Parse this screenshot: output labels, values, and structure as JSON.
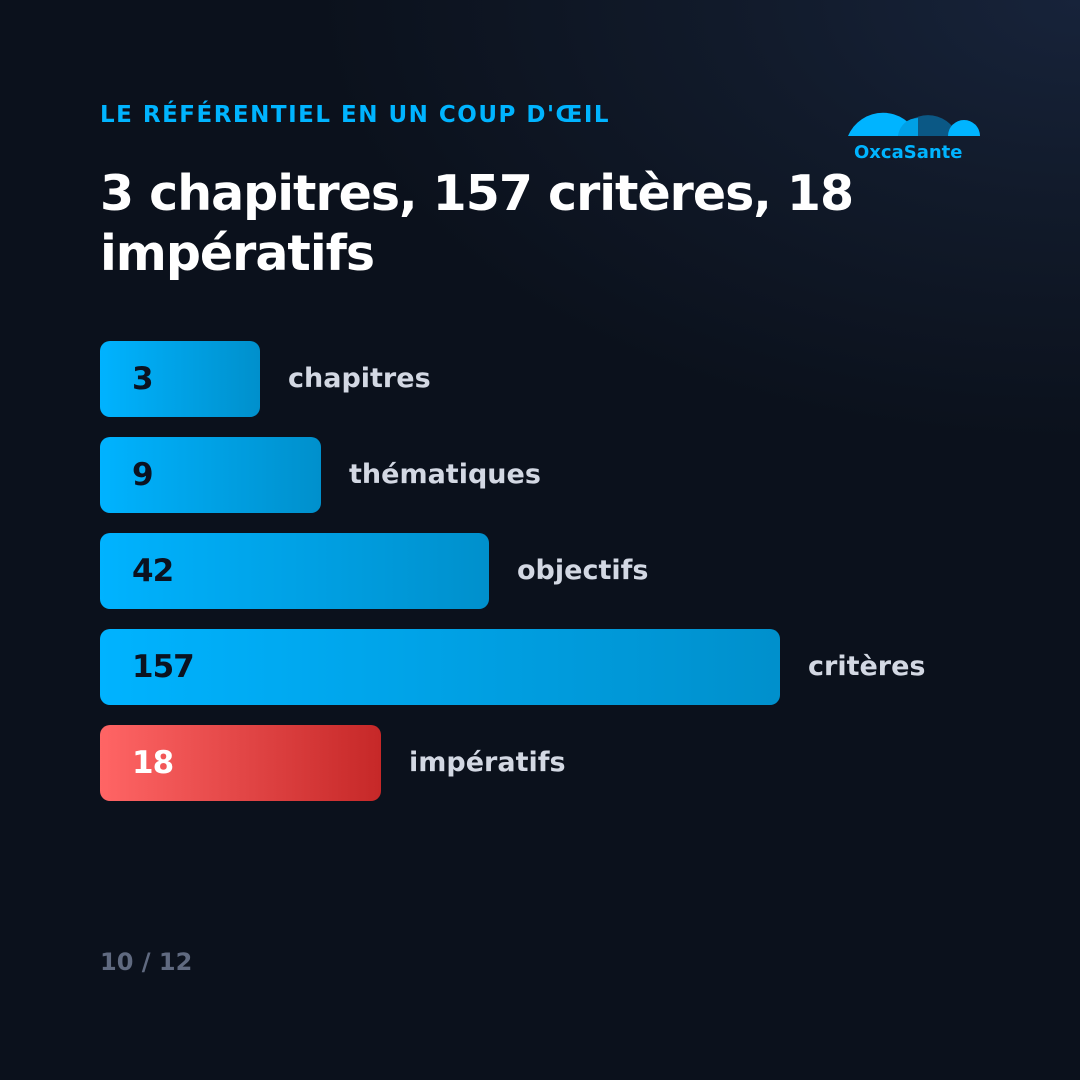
{
  "header": {
    "eyebrow": "LE RÉFÉRENTIEL EN UN COUP D'ŒIL",
    "title": "3 chapitres, 157 critères, 18 impératifs"
  },
  "brand": {
    "name": "OxcaSante",
    "logo_icon": "cloud-logo-icon",
    "color": "#00b4ff"
  },
  "chart_data": {
    "type": "bar",
    "orientation": "horizontal",
    "categories": [
      "chapitres",
      "thématiques",
      "objectifs",
      "critères",
      "impératifs"
    ],
    "values": [
      3,
      9,
      42,
      157,
      18
    ],
    "value_labels": [
      "3",
      "9",
      "42",
      "157",
      "18"
    ],
    "highlight": [
      "",
      "",
      "",
      "",
      "alert"
    ],
    "colors": {
      "default": "#00b3ff",
      "alert": "#ff6565"
    },
    "title": "",
    "xlabel": "",
    "ylabel": "",
    "grid": false,
    "legend": "none"
  },
  "footer": {
    "page_indicator": "10 / 12"
  }
}
